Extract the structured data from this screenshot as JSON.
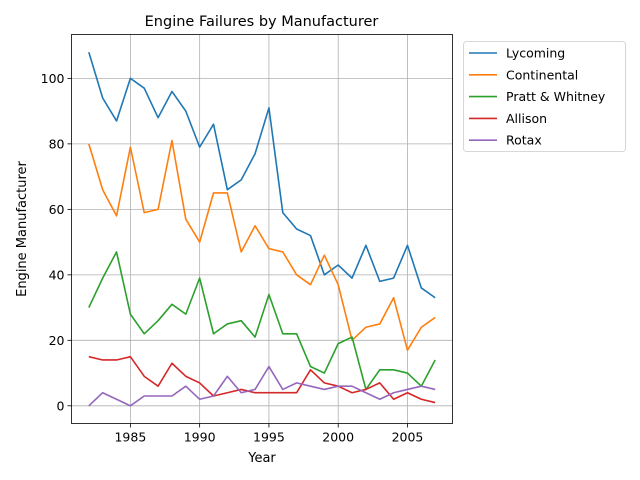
{
  "chart_data": {
    "type": "line",
    "title": "Engine Failures by Manufacturer",
    "xlabel": "Year",
    "ylabel": "Engine Manufacturer",
    "xlim": [
      1980.75,
      2008.25
    ],
    "ylim": [
      -5.4,
      113.4
    ],
    "xticks": [
      1985,
      1990,
      1995,
      2000,
      2005
    ],
    "yticks": [
      0,
      20,
      40,
      60,
      80,
      100
    ],
    "grid": true,
    "legend_position": "outside-top-right",
    "x": [
      1982,
      1983,
      1984,
      1985,
      1986,
      1987,
      1988,
      1989,
      1990,
      1991,
      1992,
      1993,
      1994,
      1995,
      1996,
      1997,
      1998,
      1999,
      2000,
      2001,
      2002,
      2003,
      2004,
      2005,
      2006,
      2007
    ],
    "series": [
      {
        "name": "Lycoming",
        "color": "#1f77b4",
        "values": [
          108,
          94,
          87,
          100,
          97,
          88,
          96,
          90,
          79,
          86,
          66,
          69,
          77,
          91,
          59,
          54,
          52,
          40,
          43,
          39,
          49,
          38,
          39,
          49,
          36,
          33
        ]
      },
      {
        "name": "Continental",
        "color": "#ff7f0e",
        "values": [
          80,
          66,
          58,
          79,
          59,
          60,
          81,
          57,
          50,
          65,
          65,
          47,
          55,
          48,
          47,
          40,
          37,
          46,
          37,
          20,
          24,
          25,
          33,
          17,
          24,
          27
        ]
      },
      {
        "name": "Pratt & Whitney",
        "color": "#2ca02c",
        "values": [
          30,
          39,
          47,
          28,
          22,
          26,
          31,
          28,
          39,
          22,
          25,
          26,
          21,
          34,
          22,
          22,
          12,
          10,
          19,
          21,
          5,
          11,
          11,
          10,
          6,
          14
        ]
      },
      {
        "name": "Allison",
        "color": "#d62728",
        "values": [
          15,
          14,
          14,
          15,
          9,
          6,
          13,
          9,
          7,
          3,
          4,
          5,
          4,
          4,
          4,
          4,
          11,
          7,
          6,
          4,
          5,
          7,
          2,
          4,
          2,
          1
        ]
      },
      {
        "name": "Rotax",
        "color": "#9467bd",
        "values": [
          0,
          4,
          2,
          0,
          3,
          3,
          3,
          6,
          2,
          3,
          9,
          4,
          5,
          12,
          5,
          7,
          6,
          5,
          6,
          6,
          4,
          2,
          4,
          5,
          6,
          5
        ]
      }
    ]
  }
}
